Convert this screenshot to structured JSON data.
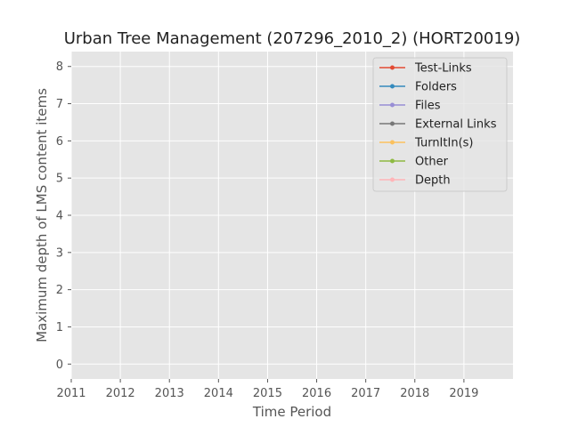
{
  "chart_data": {
    "type": "line",
    "title": "Urban Tree Management (207296_2010_2) (HORT20019)",
    "xlabel": "Time Period",
    "ylabel": "Maximum depth of LMS content items",
    "x_ticks": [
      "2011",
      "2012",
      "2013",
      "2014",
      "2015",
      "2016",
      "2017",
      "2018",
      "2019"
    ],
    "y_ticks": [
      "0",
      "1",
      "2",
      "3",
      "4",
      "5",
      "6",
      "7",
      "8"
    ],
    "xlim": [
      2011,
      2020
    ],
    "ylim": [
      -0.4,
      8.4
    ],
    "grid": true,
    "legend_position": "top-right",
    "series": [
      {
        "name": "Test-Links",
        "color": "#E24A33",
        "values": []
      },
      {
        "name": "Folders",
        "color": "#348ABD",
        "values": []
      },
      {
        "name": "Files",
        "color": "#988ED5",
        "values": []
      },
      {
        "name": "External Links",
        "color": "#777777",
        "values": []
      },
      {
        "name": "TurnItIn(s)",
        "color": "#FBC15E",
        "values": []
      },
      {
        "name": "Other",
        "color": "#8EBA42",
        "values": []
      },
      {
        "name": "Depth",
        "color": "#FFB5B8",
        "values": []
      }
    ]
  }
}
